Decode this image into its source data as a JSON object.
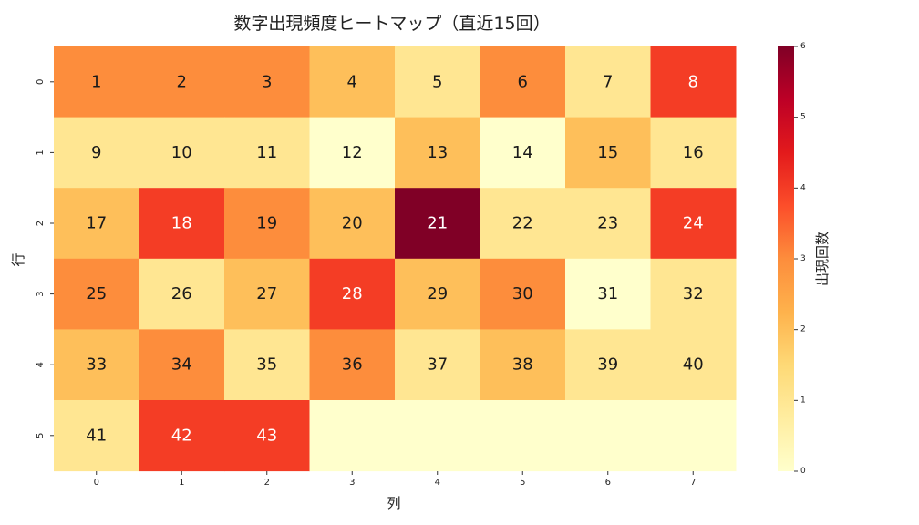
{
  "chart_data": {
    "type": "heatmap",
    "title": "数字出現頻度ヒートマップ（直近15回）",
    "xlabel": "列",
    "ylabel": "行",
    "colorbar_label": "出現回数",
    "colormap": "YlOrRd",
    "vmin": 0,
    "vmax": 6,
    "colorbar_ticks": [
      "0",
      "1",
      "2",
      "3",
      "4",
      "5",
      "6"
    ],
    "x_ticks": [
      "0",
      "1",
      "2",
      "3",
      "4",
      "5",
      "6",
      "7"
    ],
    "y_ticks": [
      "0",
      "1",
      "2",
      "3",
      "4",
      "5"
    ],
    "values": [
      [
        3,
        3,
        3,
        2,
        1,
        3,
        1,
        4
      ],
      [
        1,
        1,
        1,
        0,
        2,
        0,
        2,
        1
      ],
      [
        2,
        4,
        3,
        2,
        6,
        1,
        1,
        4
      ],
      [
        3,
        1,
        2,
        4,
        2,
        3,
        0,
        1
      ],
      [
        2,
        3,
        1,
        3,
        1,
        2,
        1,
        1
      ],
      [
        1,
        4,
        4,
        null,
        null,
        null,
        null,
        null
      ]
    ],
    "annotations": [
      [
        "1",
        "2",
        "3",
        "4",
        "5",
        "6",
        "7",
        "8"
      ],
      [
        "9",
        "10",
        "11",
        "12",
        "13",
        "14",
        "15",
        "16"
      ],
      [
        "17",
        "18",
        "19",
        "20",
        "21",
        "22",
        "23",
        "24"
      ],
      [
        "25",
        "26",
        "27",
        "28",
        "29",
        "30",
        "31",
        "32"
      ],
      [
        "33",
        "34",
        "35",
        "36",
        "37",
        "38",
        "39",
        "40"
      ],
      [
        "41",
        "42",
        "43",
        "",
        "",
        "",
        "",
        ""
      ]
    ],
    "empty_cell_color": "#ffffcc"
  }
}
